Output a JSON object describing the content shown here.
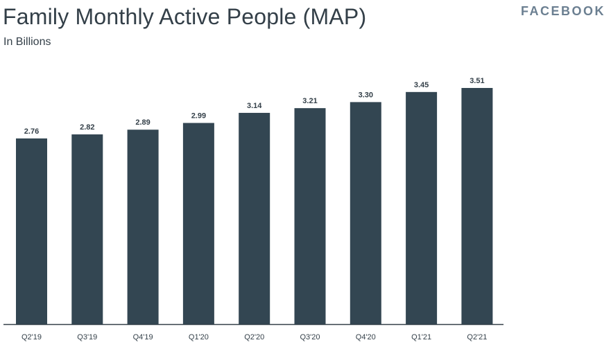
{
  "header": {
    "title": "Family Monthly Active People (MAP)",
    "subtitle": "In Billions",
    "brand": "FACEBOOK"
  },
  "chart_data": {
    "type": "bar",
    "title": "Family Monthly Active People (MAP)",
    "subtitle": "In Billions",
    "categories": [
      "Q2'19",
      "Q3'19",
      "Q4'19",
      "Q1'20",
      "Q2'20",
      "Q3'20",
      "Q4'20",
      "Q1'21",
      "Q2'21"
    ],
    "values": [
      2.76,
      2.82,
      2.89,
      2.99,
      3.14,
      3.21,
      3.3,
      3.45,
      3.51
    ],
    "data_labels": [
      "2.76",
      "2.82",
      "2.89",
      "2.99",
      "3.14",
      "3.21",
      "3.30",
      "3.45",
      "3.51"
    ],
    "ylim": [
      0,
      3.51
    ],
    "grid": false,
    "bar_color": "#334652"
  }
}
